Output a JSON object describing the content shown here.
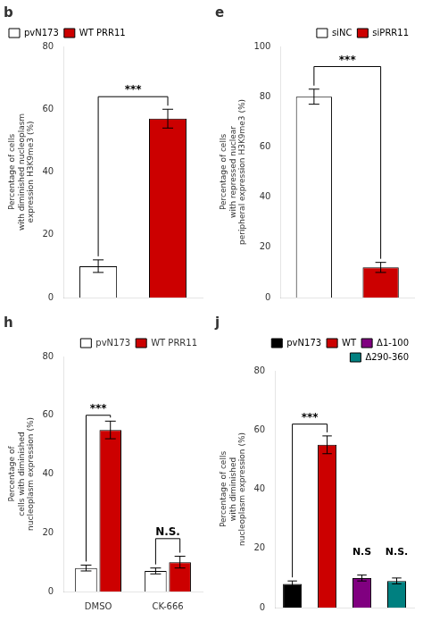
{
  "chart_data": [
    {
      "type": "bar",
      "title": "b",
      "categories": [
        "pvN173",
        "WT PRR11"
      ],
      "values": [
        10,
        57
      ],
      "error": [
        2,
        3
      ],
      "colors": [
        "#ffffff",
        "#cc0000"
      ],
      "ylabel": "Percentage of cells\nwith diminished nucleoplasm\nexpression H3K9me3 (%)",
      "ylim": [
        0,
        80
      ],
      "yticks": [
        0,
        20,
        40,
        60,
        80
      ],
      "grid": false,
      "legend": "upper left",
      "tick_labels": "y",
      "annotations": [
        {
          "text": "***",
          "from": "pvN173",
          "to": "WT PRR11",
          "y": 64
        }
      ]
    },
    {
      "type": "bar",
      "title": "e",
      "categories": [
        "siNC",
        "siPRR11"
      ],
      "values": [
        80,
        12
      ],
      "error": [
        3,
        2
      ],
      "colors": [
        "#ffffff",
        "#cc0000"
      ],
      "ylabel": "Percentage of cells\nwith repressed nuclear\nperipheral expression H3K9me3 (%)",
      "ylim": [
        0,
        100
      ],
      "yticks": [
        0,
        20,
        40,
        60,
        80,
        100
      ],
      "grid": false,
      "legend": "upper right",
      "tick_labels": "y",
      "annotations": [
        {
          "text": "***",
          "from": "siNC",
          "to": "siPRR11",
          "y": 92
        }
      ]
    },
    {
      "type": "bar",
      "title": "h",
      "categories": [
        "DMSO",
        "CK-666"
      ],
      "series": [
        {
          "name": "pvN173",
          "color": "#ffffff",
          "values": [
            8,
            7
          ],
          "error": [
            1,
            1
          ]
        },
        {
          "name": "WT PRR11",
          "color": "#cc0000",
          "values": [
            55,
            10
          ],
          "error": [
            3,
            2
          ]
        }
      ],
      "ylabel": "Percentage of\ncells with diminished\nnucleoplasm expression (%)",
      "ylim": [
        0,
        80
      ],
      "yticks": [
        0,
        20,
        40,
        60,
        80
      ],
      "grid": false,
      "legend": "upper right",
      "annotations": [
        {
          "text": "***",
          "category": "DMSO",
          "y": 60
        },
        {
          "text": "N.S.",
          "category": "CK-666",
          "y": 18
        }
      ]
    },
    {
      "type": "bar",
      "title": "j",
      "categories": [
        "pvN173",
        "WT",
        "Δ1-100",
        "Δ290-360"
      ],
      "values": [
        8,
        55,
        10,
        9
      ],
      "error": [
        1,
        3,
        1,
        1
      ],
      "colors": [
        "#000000",
        "#cc0000",
        "#800080",
        "#008080"
      ],
      "ylabel": "Percentage of cells\nwith diminished\nnucleoplasm expression (%)",
      "ylim": [
        0,
        80
      ],
      "yticks": [
        0,
        20,
        40,
        60,
        80
      ],
      "grid": false,
      "legend": "upper right",
      "tick_labels": "y",
      "annotations": [
        {
          "text": "***",
          "from": "pvN173",
          "to": "WT",
          "y": 62
        },
        {
          "text": "N.S",
          "category": "Δ1-100",
          "y": 17
        },
        {
          "text": "N.S.",
          "category": "Δ290-360",
          "y": 17
        }
      ]
    }
  ]
}
